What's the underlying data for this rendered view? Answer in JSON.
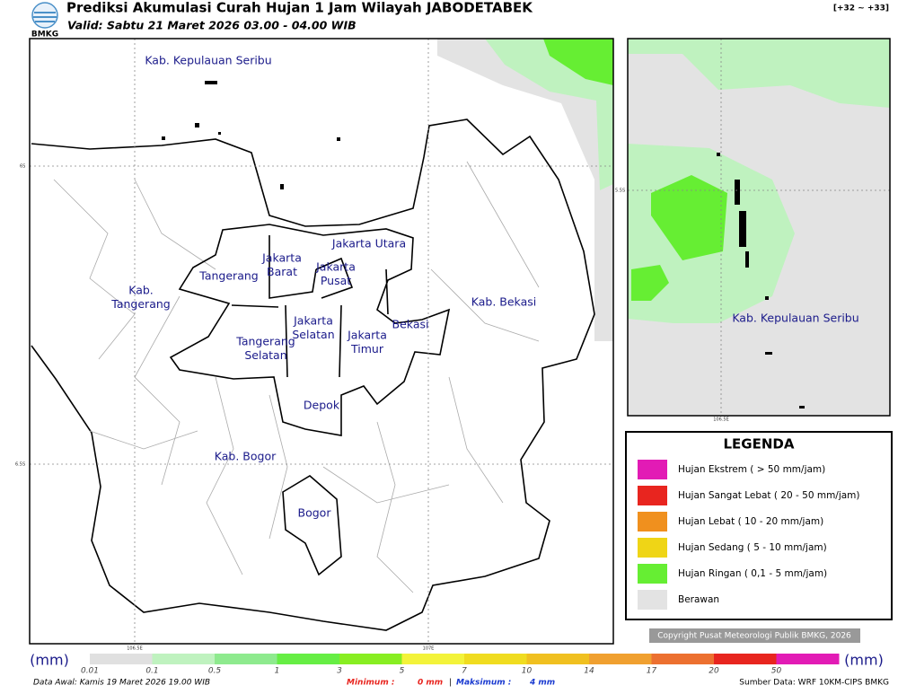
{
  "header": {
    "logo_text": "BMKG",
    "title": "Prediksi Akumulasi Curah Hujan 1 Jam Wilayah JABODETABEK",
    "valid": "Valid: Sabtu 21 Maret 2026 03.00 - 04.00 WIB",
    "code": "[+32 ~ +33]"
  },
  "main_map": {
    "grid_labels": [
      "6S",
      "6.5S",
      "106.5E",
      "107E"
    ],
    "regions": [
      {
        "lines": [
          "Kab. Kepulauan Seribu"
        ]
      },
      {
        "lines": [
          "Jakarta Utara"
        ]
      },
      {
        "lines": [
          "Jakarta",
          "Barat"
        ]
      },
      {
        "lines": [
          "Jakarta",
          "Pusat"
        ]
      },
      {
        "lines": [
          "Tangerang"
        ]
      },
      {
        "lines": [
          "Kab.",
          "Tangerang"
        ]
      },
      {
        "lines": [
          "Kab. Bekasi"
        ]
      },
      {
        "lines": [
          "Jakarta",
          "Selatan"
        ]
      },
      {
        "lines": [
          "Jakarta",
          "Timur"
        ]
      },
      {
        "lines": [
          "Bekasi"
        ]
      },
      {
        "lines": [
          "Tangerang",
          "Selatan"
        ]
      },
      {
        "lines": [
          "Depok"
        ]
      },
      {
        "lines": [
          "Kab. Bogor"
        ]
      },
      {
        "lines": [
          "Bogor"
        ]
      }
    ]
  },
  "inset_map": {
    "grid_labels": [
      "5.5S",
      "106.5E"
    ],
    "label": "Kab. Kepulauan Seribu"
  },
  "legend": {
    "title": "LEGENDA",
    "items": [
      {
        "label": "Hujan Ekstrem ( > 50 mm/jam)",
        "color": "#e21bb5"
      },
      {
        "label": "Hujan Sangat Lebat ( 20 - 50 mm/jam)",
        "color": "#e8251f"
      },
      {
        "label": "Hujan Lebat ( 10 - 20 mm/jam)",
        "color": "#f0901e"
      },
      {
        "label": "Hujan Sedang ( 5 - 10 mm/jam)",
        "color": "#efd516"
      },
      {
        "label": "Hujan Ringan ( 0,1 - 5 mm/jam)",
        "color": "#66ee33"
      },
      {
        "label": "Berawan",
        "color": "#e3e3e3"
      }
    ]
  },
  "copyright": "Copyright Pusat Meteorologi Publik BMKG, 2026",
  "colorbar": {
    "unit": "(mm)",
    "ticks": [
      "0.01",
      "0.1",
      "0.5",
      "1",
      "3",
      "5",
      "7",
      "10",
      "14",
      "17",
      "20",
      "50"
    ],
    "colors": [
      "#e0e0e0",
      "#bff2bf",
      "#8eea8e",
      "#66ee44",
      "#88ee22",
      "#f3f33a",
      "#f0dc20",
      "#f0c020",
      "#f0a030",
      "#ec7030",
      "#e8251f",
      "#e21bb5"
    ]
  },
  "footer": {
    "data_awal": "Data Awal: Kamis 19 Maret 2026 19.00 WIB",
    "min_label": "Minimum :",
    "min_value": "0 mm",
    "sep": "|",
    "max_label": "Maksimum :",
    "max_value": "4 mm",
    "source": "Sumber Data: WRF 10KM-CIPS BMKG"
  }
}
